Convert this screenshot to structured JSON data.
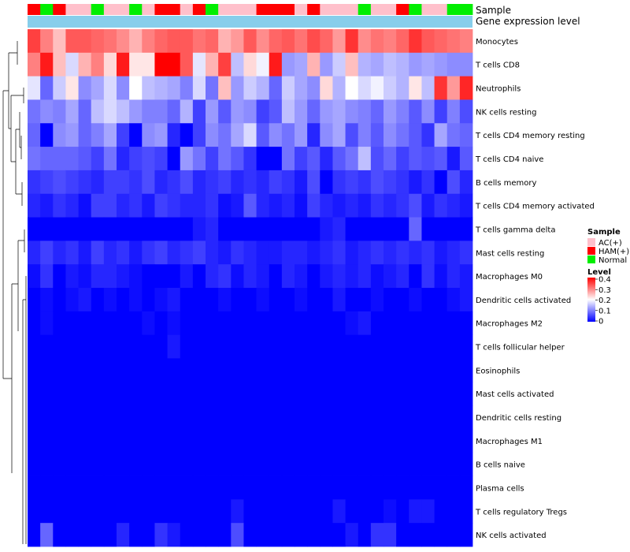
{
  "chart_data": {
    "type": "heatmap",
    "title": "",
    "top_annotation_labels": {
      "sample": "Sample",
      "gene_level": "Gene expression level"
    },
    "sample_legend": {
      "title": "Sample",
      "entries": [
        {
          "name": "AC(+)",
          "color": "#ffc0cb"
        },
        {
          "name": "HAM(+)",
          "color": "#ff0000"
        },
        {
          "name": "Normal",
          "color": "#00ee00"
        }
      ]
    },
    "level_legend": {
      "title": "Level",
      "ticks": [
        "0.4",
        "0.3",
        "0.2",
        "0.1",
        "0"
      ],
      "range": [
        0,
        0.4
      ],
      "colors": {
        "low": "#0000ff",
        "mid": "#ffffff",
        "high": "#ff0000"
      }
    },
    "gene_level_bar_color": "#87ceeb",
    "sample_groups": [
      "HAM(+)",
      "Normal",
      "HAM(+)",
      "AC(+)",
      "AC(+)",
      "Normal",
      "AC(+)",
      "AC(+)",
      "Normal",
      "AC(+)",
      "HAM(+)",
      "HAM(+)",
      "AC(+)",
      "HAM(+)",
      "Normal",
      "AC(+)",
      "AC(+)",
      "AC(+)",
      "HAM(+)",
      "HAM(+)",
      "HAM(+)",
      "AC(+)",
      "HAM(+)",
      "AC(+)",
      "AC(+)",
      "AC(+)",
      "Normal",
      "AC(+)",
      "AC(+)",
      "HAM(+)",
      "Normal",
      "AC(+)",
      "AC(+)",
      "Normal",
      "Normal"
    ],
    "rows": [
      {
        "label": "Monocytes",
        "values": [
          0.35,
          0.3,
          0.25,
          0.33,
          0.33,
          0.32,
          0.31,
          0.29,
          0.26,
          0.3,
          0.32,
          0.33,
          0.33,
          0.31,
          0.32,
          0.26,
          0.28,
          0.33,
          0.29,
          0.32,
          0.33,
          0.31,
          0.34,
          0.32,
          0.28,
          0.36,
          0.29,
          0.31,
          0.3,
          0.32,
          0.36,
          0.33,
          0.32,
          0.31,
          0.3
        ]
      },
      {
        "label": "T cells CD8",
        "values": [
          0.3,
          0.38,
          0.25,
          0.17,
          0.26,
          0.3,
          0.23,
          0.38,
          0.22,
          0.22,
          0.4,
          0.4,
          0.33,
          0.18,
          0.26,
          0.35,
          0.15,
          0.23,
          0.19,
          0.38,
          0.12,
          0.13,
          0.26,
          0.12,
          0.16,
          0.25,
          0.14,
          0.13,
          0.15,
          0.14,
          0.12,
          0.13,
          0.12,
          0.11,
          0.11
        ]
      },
      {
        "label": "Neutrophils",
        "values": [
          0.18,
          0.08,
          0.16,
          0.22,
          0.11,
          0.13,
          0.17,
          0.11,
          0.2,
          0.15,
          0.14,
          0.13,
          0.1,
          0.17,
          0.09,
          0.25,
          0.12,
          0.16,
          0.14,
          0.08,
          0.16,
          0.13,
          0.11,
          0.23,
          0.14,
          0.2,
          0.17,
          0.19,
          0.16,
          0.14,
          0.22,
          0.15,
          0.36,
          0.28,
          0.37
        ]
      },
      {
        "label": "NK cells resting",
        "values": [
          0.09,
          0.11,
          0.1,
          0.13,
          0.08,
          0.15,
          0.17,
          0.15,
          0.12,
          0.1,
          0.1,
          0.08,
          0.14,
          0.05,
          0.12,
          0.07,
          0.12,
          0.11,
          0.05,
          0.07,
          0.15,
          0.12,
          0.08,
          0.12,
          0.13,
          0.11,
          0.1,
          0.08,
          0.12,
          0.1,
          0.07,
          0.11,
          0.05,
          0.1,
          0.06
        ]
      },
      {
        "label": "T cells CD4 memory resting",
        "values": [
          0.08,
          0.0,
          0.11,
          0.12,
          0.08,
          0.1,
          0.13,
          0.05,
          0.0,
          0.11,
          0.12,
          0.03,
          0.0,
          0.05,
          0.11,
          0.09,
          0.13,
          0.17,
          0.07,
          0.11,
          0.09,
          0.12,
          0.03,
          0.11,
          0.13,
          0.06,
          0.1,
          0.07,
          0.11,
          0.09,
          0.07,
          0.04,
          0.13,
          0.09,
          0.08
        ]
      },
      {
        "label": "T cells CD4 naive",
        "values": [
          0.09,
          0.08,
          0.08,
          0.08,
          0.07,
          0.05,
          0.09,
          0.03,
          0.05,
          0.06,
          0.05,
          0.0,
          0.12,
          0.09,
          0.05,
          0.09,
          0.07,
          0.04,
          0.0,
          0.0,
          0.09,
          0.05,
          0.07,
          0.03,
          0.07,
          0.09,
          0.15,
          0.06,
          0.08,
          0.05,
          0.07,
          0.06,
          0.07,
          0.02,
          0.07
        ]
      },
      {
        "label": "B cells memory",
        "values": [
          0.04,
          0.05,
          0.06,
          0.05,
          0.04,
          0.03,
          0.05,
          0.05,
          0.04,
          0.06,
          0.03,
          0.04,
          0.06,
          0.03,
          0.04,
          0.05,
          0.03,
          0.04,
          0.03,
          0.05,
          0.04,
          0.02,
          0.06,
          0.0,
          0.04,
          0.05,
          0.04,
          0.06,
          0.05,
          0.04,
          0.02,
          0.04,
          0.0,
          0.06,
          0.03
        ]
      },
      {
        "label": "T cells CD4 memory activated",
        "values": [
          0.03,
          0.02,
          0.04,
          0.03,
          0.01,
          0.05,
          0.05,
          0.03,
          0.04,
          0.02,
          0.05,
          0.04,
          0.03,
          0.03,
          0.04,
          0.01,
          0.02,
          0.07,
          0.03,
          0.02,
          0.03,
          0.01,
          0.05,
          0.03,
          0.02,
          0.03,
          0.02,
          0.04,
          0.03,
          0.04,
          0.06,
          0.02,
          0.04,
          0.03,
          0.02
        ]
      },
      {
        "label": "T cells gamma delta",
        "values": [
          0,
          0,
          0,
          0,
          0,
          0,
          0,
          0,
          0,
          0,
          0,
          0,
          0,
          0.02,
          0.03,
          0,
          0,
          0,
          0,
          0,
          0,
          0,
          0,
          0.02,
          0.03,
          0,
          0,
          0,
          0,
          0,
          0.08,
          0,
          0,
          0,
          0
        ]
      },
      {
        "label": "Mast cells resting",
        "values": [
          0.03,
          0.05,
          0.03,
          0.04,
          0.02,
          0.05,
          0.03,
          0.04,
          0.02,
          0.04,
          0.05,
          0.03,
          0.04,
          0.05,
          0.03,
          0.02,
          0.04,
          0.03,
          0.02,
          0.02,
          0.03,
          0.03,
          0.02,
          0.03,
          0.04,
          0.02,
          0.03,
          0.04,
          0.03,
          0.04,
          0.03,
          0.04,
          0.02,
          0.03,
          0.04
        ]
      },
      {
        "label": "Macrophages M0",
        "values": [
          0.01,
          0.04,
          0.0,
          0.02,
          0.01,
          0.03,
          0.03,
          0.02,
          0.01,
          0.0,
          0.0,
          0.0,
          0.02,
          0.0,
          0.03,
          0.04,
          0.01,
          0.03,
          0.02,
          0.0,
          0.03,
          0.02,
          0.0,
          0.02,
          0.03,
          0.02,
          0.03,
          0.01,
          0.02,
          0.03,
          0.0,
          0.04,
          0.01,
          0.03,
          0.02
        ]
      },
      {
        "label": "Dendritic cells activated",
        "values": [
          0.0,
          0.01,
          0.0,
          0.01,
          0.02,
          0.0,
          0.01,
          0.0,
          0.01,
          0.0,
          0.01,
          0.02,
          0.0,
          0.0,
          0.0,
          0.01,
          0.0,
          0.0,
          0.01,
          0.0,
          0.0,
          0.01,
          0.0,
          0.0,
          0.02,
          0.0,
          0.0,
          0.01,
          0.0,
          0.0,
          0.01,
          0.0,
          0.0,
          0.01,
          0.02
        ]
      },
      {
        "label": "Macrophages M2",
        "values": [
          0.0,
          0.01,
          0,
          0,
          0,
          0,
          0,
          0,
          0,
          0.01,
          0.0,
          0.01,
          0,
          0,
          0,
          0,
          0,
          0,
          0,
          0,
          0,
          0,
          0,
          0,
          0,
          0.01,
          0.02,
          0,
          0,
          0,
          0,
          0,
          0,
          0,
          0
        ]
      },
      {
        "label": "T cells follicular helper",
        "values": [
          0,
          0,
          0,
          0,
          0,
          0,
          0,
          0,
          0,
          0,
          0,
          0.02,
          0,
          0,
          0,
          0,
          0,
          0,
          0,
          0,
          0,
          0,
          0,
          0,
          0,
          0,
          0,
          0,
          0,
          0,
          0,
          0,
          0,
          0,
          0
        ]
      },
      {
        "label": "Eosinophils",
        "values": [
          0,
          0,
          0,
          0,
          0,
          0,
          0,
          0,
          0,
          0,
          0,
          0,
          0,
          0,
          0,
          0,
          0,
          0,
          0,
          0,
          0,
          0,
          0,
          0,
          0,
          0,
          0,
          0,
          0,
          0,
          0,
          0,
          0,
          0,
          0
        ]
      },
      {
        "label": "Mast cells activated",
        "values": [
          0,
          0,
          0,
          0,
          0,
          0,
          0,
          0,
          0,
          0,
          0,
          0,
          0,
          0,
          0,
          0,
          0,
          0,
          0,
          0,
          0,
          0,
          0,
          0,
          0,
          0,
          0,
          0,
          0,
          0,
          0,
          0,
          0,
          0,
          0
        ]
      },
      {
        "label": "Dendritic cells resting",
        "values": [
          0,
          0,
          0,
          0,
          0,
          0,
          0,
          0,
          0,
          0,
          0,
          0,
          0,
          0,
          0,
          0,
          0,
          0,
          0,
          0,
          0,
          0,
          0,
          0,
          0,
          0,
          0,
          0,
          0,
          0,
          0,
          0,
          0,
          0,
          0
        ]
      },
      {
        "label": "Macrophages M1",
        "values": [
          0,
          0,
          0,
          0,
          0,
          0,
          0,
          0,
          0,
          0,
          0,
          0,
          0,
          0,
          0,
          0,
          0,
          0,
          0,
          0,
          0,
          0,
          0,
          0,
          0,
          0,
          0,
          0,
          0,
          0,
          0,
          0,
          0,
          0,
          0
        ]
      },
      {
        "label": "B cells naive",
        "values": [
          0,
          0,
          0,
          0,
          0,
          0,
          0,
          0,
          0,
          0,
          0,
          0,
          0,
          0,
          0,
          0,
          0,
          0,
          0,
          0,
          0,
          0,
          0,
          0,
          0,
          0,
          0,
          0,
          0,
          0,
          0,
          0,
          0,
          0,
          0
        ]
      },
      {
        "label": "Plasma cells",
        "values": [
          0,
          0,
          0,
          0,
          0,
          0,
          0,
          0,
          0,
          0,
          0,
          0,
          0,
          0,
          0,
          0,
          0,
          0,
          0,
          0,
          0,
          0,
          0,
          0,
          0,
          0,
          0,
          0,
          0,
          0,
          0,
          0,
          0,
          0,
          0
        ]
      },
      {
        "label": "T cells regulatory  Tregs",
        "values": [
          0,
          0,
          0,
          0,
          0,
          0,
          0,
          0,
          0,
          0,
          0,
          0,
          0,
          0,
          0,
          0,
          0.02,
          0,
          0,
          0,
          0,
          0,
          0,
          0,
          0.02,
          0,
          0,
          0,
          0.01,
          0,
          0.02,
          0.02,
          0,
          0,
          0
        ]
      },
      {
        "label": "NK cells activated",
        "values": [
          0.0,
          0.08,
          0.0,
          0.0,
          0.0,
          0.0,
          0.0,
          0.03,
          0.0,
          0.0,
          0.04,
          0.02,
          0.0,
          0.0,
          0.0,
          0.0,
          0.06,
          0.0,
          0.0,
          0.0,
          0.0,
          0.0,
          0.0,
          0.0,
          0.0,
          0.02,
          0.0,
          0.04,
          0.04,
          0.0,
          0.0,
          0.0,
          0.0,
          0.0,
          0.0
        ]
      }
    ]
  }
}
